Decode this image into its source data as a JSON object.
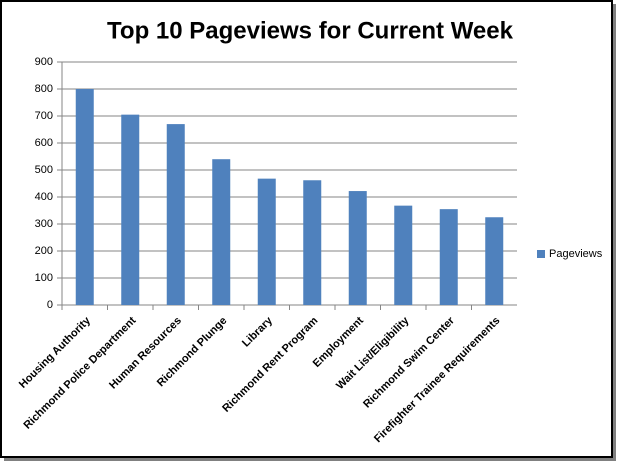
{
  "chart_data": {
    "type": "bar",
    "title": "Top 10 Pageviews for Current Week",
    "categories": [
      "Housing Authority",
      "Richmond Police Department",
      "Human Resources",
      "Richmond Plunge",
      "Library",
      "Richmond Rent Program",
      "Employment",
      "Wait List/Eligibility",
      "Richmond Swim Center",
      "Firefighter Trainee Requirements"
    ],
    "series": [
      {
        "name": "Pageviews",
        "color": "#4f81bd",
        "values": [
          800,
          705,
          670,
          540,
          468,
          462,
          422,
          368,
          355,
          325
        ]
      }
    ],
    "ylim": [
      0,
      900
    ],
    "yticks": [
      0,
      100,
      200,
      300,
      400,
      500,
      600,
      700,
      800,
      900
    ],
    "grid": true,
    "legend": "right"
  }
}
